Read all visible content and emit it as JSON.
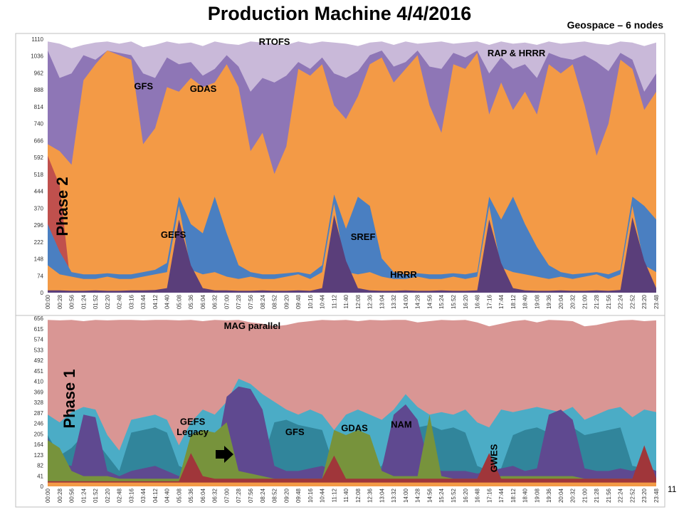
{
  "slide": {
    "title": "Production Machine 4/4/2016",
    "subtitle": "Geospace – 6 nodes",
    "page_number": "11"
  },
  "colors": {
    "top_total": "#c9b9d9",
    "top_purple": "#8e76b6",
    "top_orange": "#f39a46",
    "top_red": "#c0504d",
    "top_blue": "#4a7fc1",
    "top_dark": "#5a3e7a",
    "bot_pink": "#d99694",
    "bot_teal": "#31859b",
    "bot_cyan": "#4bacc6",
    "bot_purple": "#5f4990",
    "bot_green": "#77933c",
    "bot_lightgreen": "#9bbb59",
    "bot_darkred": "#a0363a"
  },
  "chart_data": [
    {
      "type": "area",
      "panel": "Phase 2",
      "ylim": [
        0,
        1110
      ],
      "y_ticks": [
        "0",
        "74",
        "148",
        "222",
        "296",
        "370",
        "444",
        "518",
        "592",
        "666",
        "740",
        "814",
        "888",
        "962",
        "1036",
        "1110"
      ],
      "x_ticks": [
        "00:00",
        "00:28",
        "00:56",
        "01:24",
        "01:52",
        "02:20",
        "02:48",
        "03:16",
        "03:44",
        "04:12",
        "04:40",
        "05:08",
        "05:36",
        "06:04",
        "06:32",
        "07:00",
        "07:28",
        "07:56",
        "08:24",
        "08:52",
        "09:20",
        "09:48",
        "10:16",
        "10:44",
        "11:12",
        "11:40",
        "12:08",
        "12:36",
        "13:04",
        "13:32",
        "14:00",
        "14:28",
        "14:56",
        "15:24",
        "15:52",
        "16:20",
        "16:48",
        "17:16",
        "17:44",
        "18:12",
        "18:40",
        "19:08",
        "19:36",
        "20:04",
        "20:32",
        "21:00",
        "21:28",
        "21:56",
        "22:24",
        "22:52",
        "23:20",
        "23:48"
      ],
      "annotations": [
        {
          "text": "RTOFS",
          "x": "08:52",
          "y": 1085
        },
        {
          "text": "RAP & HRRR",
          "x": "18:20",
          "y": 1035
        },
        {
          "text": "GFS",
          "x": "03:45",
          "y": 890
        },
        {
          "text": "GDAS",
          "x": "06:05",
          "y": 880
        },
        {
          "text": "GEFS",
          "x": "04:55",
          "y": 240
        },
        {
          "text": "SREF",
          "x": "12:20",
          "y": 230
        },
        {
          "text": "HRRR",
          "x": "13:55",
          "y": 65
        }
      ],
      "phase_label": "Phase 2",
      "series": [
        {
          "color": "#c9b9d9",
          "values": [
            1100,
            1090,
            1070,
            1085,
            1095,
            1100,
            1090,
            1100,
            1075,
            1085,
            1100,
            1090,
            1095,
            1080,
            1100,
            1090,
            1085,
            1100,
            1095,
            1090,
            1085,
            1100,
            1090,
            1100,
            1095,
            1090,
            1080,
            1095,
            1100,
            1085,
            1100,
            1090,
            1095,
            1100,
            1090,
            1095,
            1100,
            1085,
            1100,
            1090,
            1095,
            1085,
            1100,
            1090,
            1095,
            1100,
            1090,
            1085,
            1100,
            1095,
            1080,
            1095
          ]
        },
        {
          "color": "#8e76b6",
          "values": [
            1060,
            940,
            960,
            1040,
            1020,
            1060,
            1050,
            1040,
            960,
            940,
            1030,
            1000,
            1010,
            950,
            980,
            1040,
            990,
            880,
            940,
            920,
            950,
            1010,
            980,
            1030,
            960,
            940,
            970,
            1040,
            1060,
            990,
            1010,
            1060,
            990,
            980,
            1050,
            1030,
            1060,
            960,
            1030,
            980,
            1000,
            940,
            1050,
            1030,
            1020,
            1040,
            1010,
            970,
            1050,
            1020,
            880,
            960
          ]
        },
        {
          "color": "#f39a46",
          "values": [
            650,
            620,
            560,
            930,
            1000,
            1060,
            1040,
            1020,
            650,
            720,
            900,
            880,
            940,
            900,
            920,
            1000,
            900,
            620,
            700,
            520,
            640,
            980,
            950,
            1000,
            820,
            760,
            860,
            1000,
            1030,
            920,
            980,
            1040,
            820,
            700,
            1000,
            980,
            1050,
            780,
            920,
            800,
            880,
            780,
            1000,
            960,
            1000,
            820,
            600,
            740,
            1020,
            980,
            800,
            880
          ]
        },
        {
          "color": "#c0504d",
          "values": [
            600,
            470,
            0,
            0,
            0,
            0,
            0,
            0,
            0,
            0,
            0,
            0,
            0,
            0,
            0,
            0,
            0,
            0,
            0,
            0,
            0,
            0,
            0,
            0,
            0,
            0,
            0,
            0,
            0,
            0,
            0,
            0,
            0,
            0,
            0,
            0,
            0,
            0,
            0,
            0,
            0,
            0,
            0,
            0,
            0,
            0,
            0,
            0,
            0,
            0,
            0,
            0
          ]
        },
        {
          "color": "#4a7fc1",
          "values": [
            300,
            180,
            90,
            80,
            80,
            85,
            80,
            80,
            90,
            100,
            130,
            420,
            300,
            260,
            420,
            260,
            120,
            90,
            80,
            80,
            85,
            90,
            80,
            120,
            430,
            280,
            420,
            380,
            150,
            90,
            80,
            85,
            80,
            80,
            85,
            80,
            90,
            420,
            320,
            420,
            300,
            200,
            120,
            90,
            80,
            85,
            90,
            80,
            100,
            420,
            380,
            320
          ]
        },
        {
          "color": "#f39a46",
          "values": [
            120,
            80,
            70,
            60,
            60,
            70,
            60,
            60,
            70,
            80,
            90,
            380,
            100,
            80,
            90,
            70,
            60,
            70,
            60,
            60,
            70,
            80,
            60,
            90,
            390,
            90,
            80,
            90,
            70,
            60,
            60,
            70,
            60,
            60,
            70,
            60,
            70,
            380,
            110,
            90,
            80,
            70,
            60,
            70,
            60,
            70,
            80,
            60,
            80,
            380,
            120,
            90
          ]
        },
        {
          "color": "#5a3e7a",
          "values": [
            10,
            10,
            8,
            8,
            10,
            8,
            8,
            10,
            10,
            12,
            20,
            320,
            120,
            20,
            10,
            10,
            8,
            8,
            10,
            8,
            8,
            10,
            8,
            20,
            340,
            140,
            20,
            10,
            8,
            8,
            10,
            8,
            8,
            10,
            8,
            8,
            10,
            320,
            130,
            20,
            10,
            8,
            8,
            10,
            8,
            8,
            10,
            8,
            12,
            330,
            140,
            20
          ]
        }
      ]
    },
    {
      "type": "area",
      "panel": "Phase 1",
      "ylim": [
        0,
        656
      ],
      "y_ticks": [
        "0",
        "41",
        "82",
        "123",
        "164",
        "205",
        "246",
        "287",
        "328",
        "369",
        "410",
        "451",
        "492",
        "533",
        "574",
        "615",
        "656"
      ],
      "x_ticks": [
        "00:00",
        "00:28",
        "00:56",
        "01:24",
        "01:52",
        "02:20",
        "02:48",
        "03:16",
        "03:44",
        "04:12",
        "04:40",
        "05:08",
        "05:36",
        "06:04",
        "06:32",
        "07:00",
        "07:28",
        "07:56",
        "08:24",
        "08:52",
        "09:20",
        "09:48",
        "10:16",
        "10:44",
        "11:12",
        "11:40",
        "12:08",
        "12:36",
        "13:04",
        "13:32",
        "14:00",
        "14:28",
        "14:56",
        "15:24",
        "15:52",
        "16:20",
        "16:48",
        "17:16",
        "17:44",
        "18:12",
        "18:40",
        "19:08",
        "19:36",
        "20:04",
        "20:32",
        "21:00",
        "21:28",
        "21:56",
        "22:24",
        "22:52",
        "23:20",
        "23:48"
      ],
      "annotations": [
        {
          "text": "MAG parallel",
          "x": "08:00",
          "y": 615
        },
        {
          "text": "GEFS",
          "x": "05:40",
          "y": 240
        },
        {
          "text": "Legacy",
          "x": "05:40",
          "y": 200
        },
        {
          "text": "GFS",
          "x": "09:40",
          "y": 200
        },
        {
          "text": "GDAS",
          "x": "12:00",
          "y": 215
        },
        {
          "text": "NAM",
          "x": "13:50",
          "y": 230
        },
        {
          "text": "GWES",
          "x": "17:35",
          "y": 110,
          "rotated": true
        }
      ],
      "phase_label": "Phase 1",
      "series": [
        {
          "color": "#d99694",
          "values": [
            650,
            648,
            650,
            645,
            650,
            648,
            650,
            650,
            648,
            650,
            650,
            648,
            650,
            645,
            650,
            648,
            650,
            640,
            635,
            625,
            630,
            640,
            645,
            650,
            648,
            650,
            645,
            650,
            648,
            650,
            650,
            640,
            645,
            650,
            648,
            650,
            640,
            625,
            635,
            645,
            650,
            640,
            650,
            648,
            645,
            625,
            630,
            640,
            648,
            650,
            645,
            648
          ]
        },
        {
          "color": "#4bacc6",
          "values": [
            280,
            250,
            290,
            310,
            300,
            200,
            140,
            260,
            270,
            280,
            260,
            160,
            250,
            300,
            280,
            330,
            420,
            400,
            360,
            330,
            300,
            280,
            300,
            280,
            220,
            280,
            300,
            280,
            260,
            300,
            360,
            310,
            280,
            290,
            280,
            300,
            250,
            230,
            300,
            290,
            300,
            310,
            300,
            290,
            310,
            260,
            280,
            300,
            310,
            270,
            300,
            290
          ]
        },
        {
          "color": "#31859b",
          "values": [
            200,
            120,
            150,
            200,
            180,
            120,
            60,
            210,
            220,
            230,
            210,
            80,
            60,
            70,
            80,
            90,
            100,
            120,
            100,
            250,
            260,
            240,
            230,
            220,
            80,
            60,
            70,
            60,
            80,
            200,
            220,
            230,
            240,
            220,
            230,
            210,
            80,
            60,
            70,
            200,
            220,
            230,
            210,
            220,
            230,
            200,
            210,
            220,
            230,
            80,
            70,
            60
          ]
        },
        {
          "color": "#5f4990",
          "values": [
            190,
            90,
            80,
            280,
            270,
            60,
            40,
            60,
            70,
            80,
            60,
            40,
            60,
            80,
            100,
            350,
            390,
            380,
            300,
            80,
            60,
            60,
            70,
            80,
            60,
            90,
            70,
            60,
            70,
            280,
            320,
            260,
            80,
            60,
            60,
            60,
            50,
            60,
            70,
            80,
            60,
            70,
            280,
            300,
            260,
            70,
            60,
            60,
            70,
            60,
            80,
            60
          ]
        },
        {
          "color": "#77933c",
          "values": [
            180,
            150,
            60,
            40,
            40,
            40,
            30,
            30,
            30,
            30,
            30,
            30,
            200,
            220,
            210,
            250,
            60,
            50,
            40,
            30,
            30,
            30,
            30,
            30,
            220,
            200,
            220,
            200,
            60,
            40,
            40,
            40,
            280,
            40,
            30,
            30,
            30,
            30,
            40,
            40,
            40,
            40,
            40,
            40,
            40,
            30,
            30,
            30,
            30,
            30,
            30,
            30
          ]
        },
        {
          "color": "#a0363a",
          "values": [
            20,
            20,
            20,
            20,
            20,
            20,
            20,
            20,
            20,
            20,
            20,
            20,
            130,
            40,
            30,
            30,
            30,
            30,
            30,
            30,
            30,
            30,
            30,
            30,
            120,
            30,
            30,
            30,
            30,
            30,
            30,
            30,
            30,
            30,
            30,
            30,
            30,
            130,
            30,
            30,
            30,
            30,
            30,
            30,
            30,
            30,
            30,
            30,
            30,
            30,
            160,
            30
          ]
        },
        {
          "color": "#f39a46",
          "values": [
            15,
            15,
            15,
            15,
            15,
            15,
            15,
            15,
            15,
            15,
            15,
            15,
            15,
            15,
            15,
            15,
            15,
            15,
            15,
            15,
            15,
            15,
            15,
            15,
            15,
            15,
            15,
            15,
            15,
            15,
            15,
            15,
            15,
            15,
            15,
            15,
            15,
            15,
            15,
            15,
            15,
            15,
            15,
            15,
            15,
            15,
            15,
            15,
            15,
            15,
            15,
            15
          ]
        }
      ]
    }
  ]
}
